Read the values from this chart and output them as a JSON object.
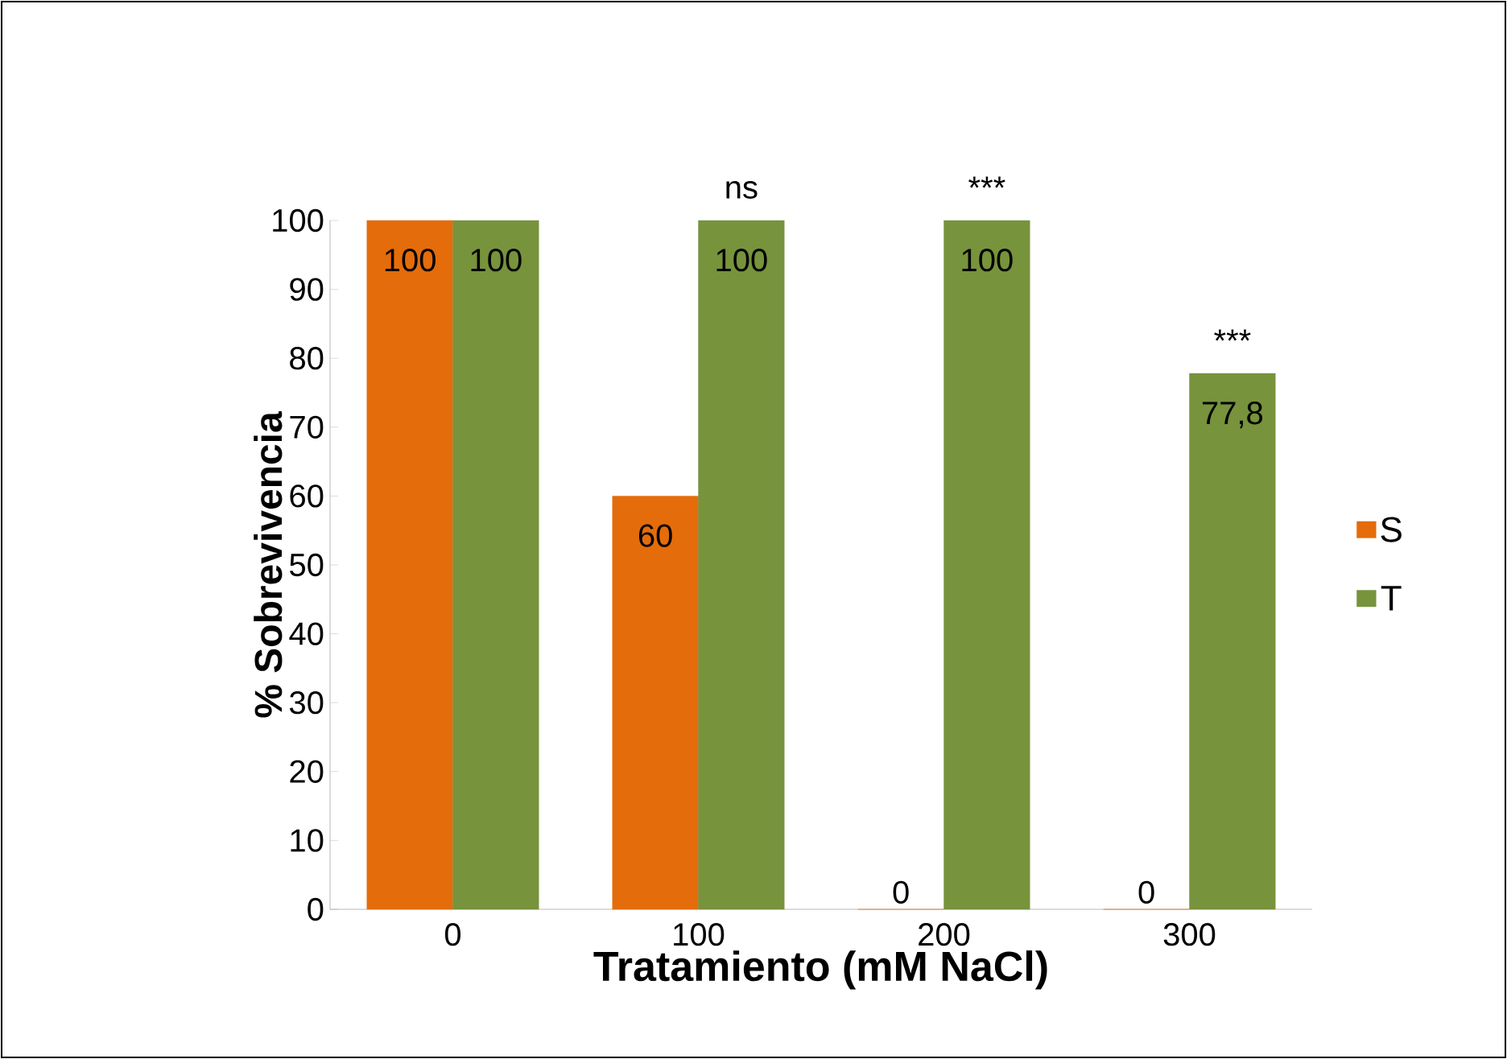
{
  "chart_data": {
    "type": "bar",
    "xlabel": "Tratamiento (mM NaCl)",
    "ylabel": "% Sobrevivencia",
    "categories": [
      "0",
      "100",
      "200",
      "300"
    ],
    "series": [
      {
        "name": "S",
        "color": "#e46c0a",
        "values": [
          100,
          60,
          0,
          0
        ],
        "value_labels": [
          "100",
          "60",
          "0",
          "0"
        ]
      },
      {
        "name": "T",
        "color": "#77933c",
        "values": [
          100,
          100,
          100,
          77.8
        ],
        "value_labels": [
          "100",
          "100",
          "100",
          "77,8"
        ]
      }
    ],
    "ylim": [
      0,
      100
    ],
    "yticks": [
      0,
      10,
      20,
      30,
      40,
      50,
      60,
      70,
      80,
      90,
      100
    ],
    "annotations": [
      {
        "text": "ns",
        "x": "100",
        "y": 100
      },
      {
        "text": "***",
        "x": "200",
        "y": 100
      },
      {
        "text": "***",
        "x": "300",
        "y": 77.8
      }
    ],
    "legend": "right",
    "grid": false
  }
}
